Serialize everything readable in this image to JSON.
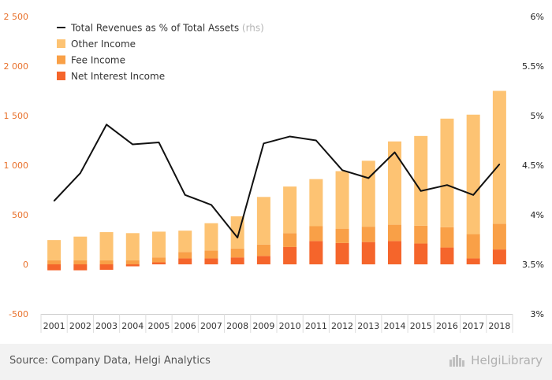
{
  "chart_data": {
    "type": "bar",
    "categories": [
      "2001",
      "2002",
      "2003",
      "2004",
      "2005",
      "2006",
      "2007",
      "2008",
      "2009",
      "2010",
      "2011",
      "2012",
      "2013",
      "2014",
      "2015",
      "2016",
      "2017",
      "2018"
    ],
    "series": [
      {
        "name": "Net Interest Income",
        "kind": "bar",
        "color": "#f5652b",
        "values": [
          -60,
          -60,
          -55,
          -20,
          20,
          60,
          60,
          70,
          85,
          175,
          235,
          215,
          225,
          235,
          210,
          170,
          60,
          150
        ]
      },
      {
        "name": "Fee Income",
        "kind": "bar",
        "color": "#f9a047",
        "values": [
          40,
          40,
          40,
          40,
          50,
          65,
          80,
          90,
          115,
          140,
          150,
          145,
          155,
          165,
          180,
          205,
          245,
          260
        ]
      },
      {
        "name": "Other Income",
        "kind": "bar",
        "color": "#fdc373",
        "values": [
          205,
          240,
          285,
          275,
          260,
          215,
          275,
          325,
          480,
          470,
          475,
          580,
          665,
          840,
          905,
          1095,
          1205,
          1340
        ]
      },
      {
        "name": "Total Revenues as % of Total Assets",
        "name_suffix": "(rhs)",
        "kind": "line",
        "axis": "right",
        "color": "#111111",
        "values": [
          4.14,
          4.42,
          4.91,
          4.71,
          4.73,
          4.2,
          4.1,
          3.77,
          4.72,
          4.79,
          4.75,
          4.45,
          4.37,
          4.63,
          4.24,
          4.3,
          4.2,
          4.51
        ]
      }
    ],
    "y_left": {
      "min": -500,
      "max": 2500,
      "ticks": [
        -500,
        0,
        500,
        1000,
        1500,
        2000,
        2500
      ],
      "tick_labels": [
        "-500",
        "0",
        "500",
        "1 000",
        "1 500",
        "2 000",
        "2 500"
      ]
    },
    "y_right": {
      "min": 3,
      "max": 6,
      "ticks": [
        3,
        3.5,
        4,
        4.5,
        5,
        5.5,
        6
      ],
      "tick_labels": [
        "3%",
        "3.5%",
        "4%",
        "4.5%",
        "5%",
        "5.5%",
        "6%"
      ]
    },
    "legend_position": "top-left",
    "legend_order": [
      3,
      2,
      1,
      0
    ],
    "grid": false
  },
  "footer": {
    "source": "Source: Company Data, Helgi Analytics",
    "brand": "HelgiLibrary"
  },
  "colors": {
    "left_axis_text": "#e8702a",
    "footer_bg": "#f2f2f2"
  }
}
